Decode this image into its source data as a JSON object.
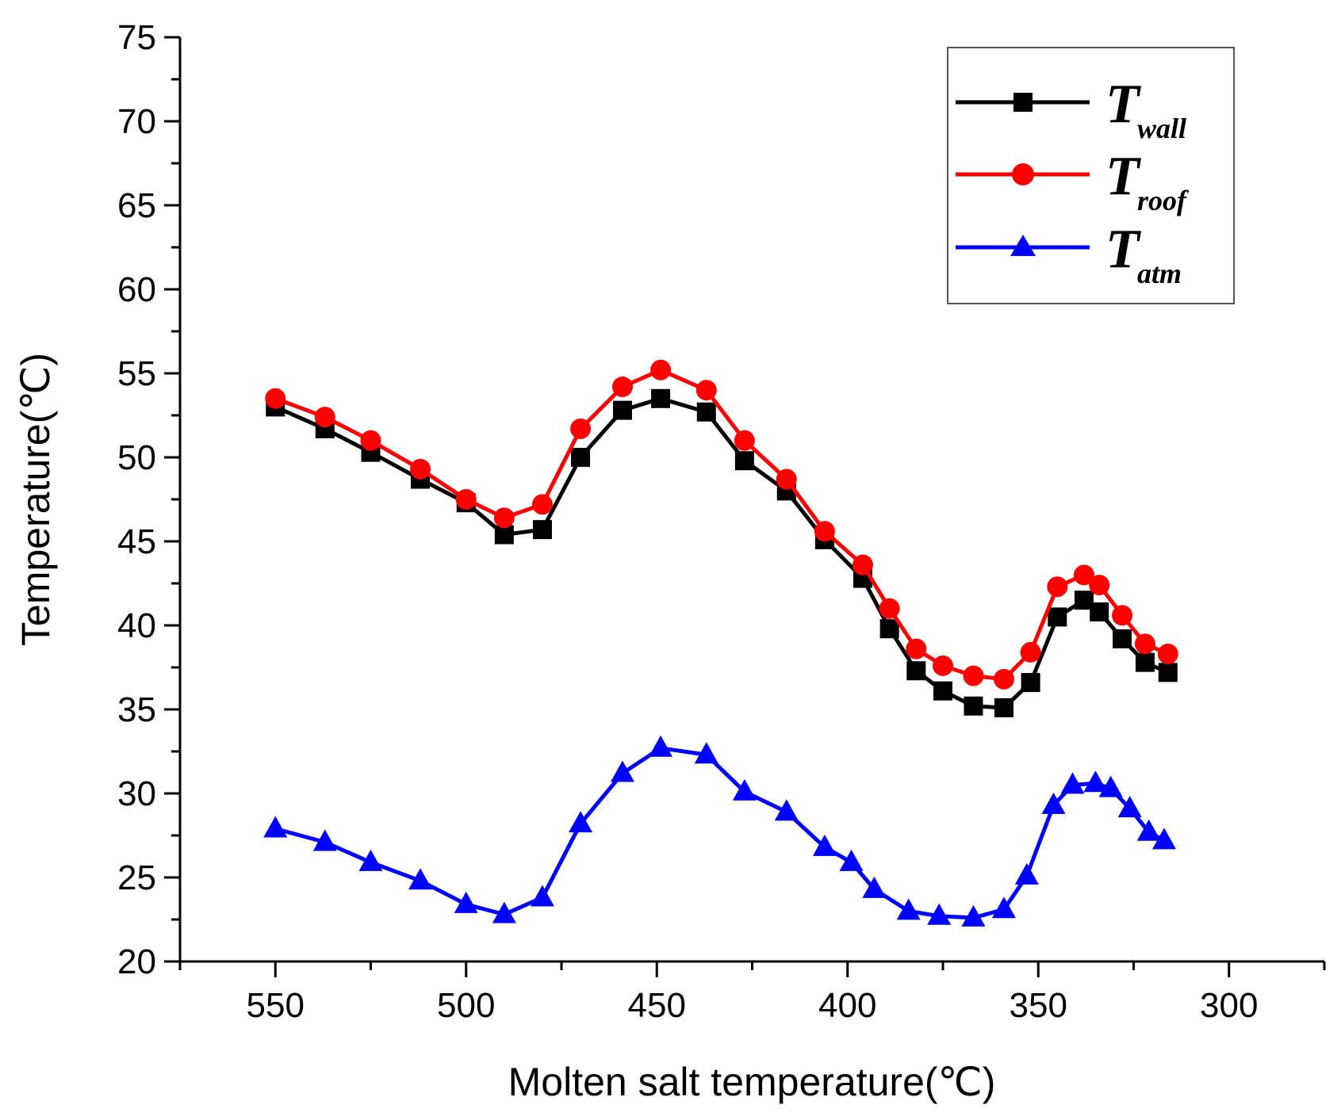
{
  "chart_data": {
    "type": "line",
    "title": "",
    "xlabel": "Molten salt temperature(℃)",
    "ylabel": "Temperature(℃)",
    "xlim": [
      575,
      275
    ],
    "ylim": [
      20,
      75
    ],
    "x_ticks": [
      550,
      500,
      450,
      400,
      350,
      300
    ],
    "y_ticks": [
      20,
      25,
      30,
      35,
      40,
      45,
      50,
      55,
      60,
      65,
      70,
      75
    ],
    "grid": false,
    "legend_position": "top-right",
    "series": [
      {
        "name": "T_wall",
        "main": "T",
        "sub": "wall",
        "color": "#000000",
        "marker": "square",
        "x": [
          550,
          537,
          525,
          512,
          500,
          490,
          480,
          470,
          459,
          449,
          437,
          427,
          416,
          406,
          396,
          389,
          382,
          375,
          367,
          359,
          352,
          345,
          338,
          334,
          328,
          322,
          316
        ],
        "y": [
          53.0,
          51.7,
          50.3,
          48.7,
          47.3,
          45.4,
          45.7,
          50.0,
          52.8,
          53.5,
          52.7,
          49.8,
          48.0,
          45.1,
          42.8,
          39.8,
          37.3,
          36.1,
          35.2,
          35.1,
          36.6,
          40.5,
          41.5,
          40.8,
          39.2,
          37.8,
          37.2
        ]
      },
      {
        "name": "T_roof",
        "main": "T",
        "sub": "roof",
        "color": "#ff0000",
        "marker": "circle",
        "x": [
          550,
          537,
          525,
          512,
          500,
          490,
          480,
          470,
          459,
          449,
          437,
          427,
          416,
          406,
          396,
          389,
          382,
          375,
          367,
          359,
          352,
          345,
          338,
          334,
          328,
          322,
          316
        ],
        "y": [
          53.5,
          52.4,
          51.0,
          49.3,
          47.5,
          46.4,
          47.2,
          51.7,
          54.2,
          55.2,
          54.0,
          51.0,
          48.7,
          45.6,
          43.6,
          41.0,
          38.6,
          37.6,
          37.0,
          36.8,
          38.4,
          42.3,
          43.0,
          42.4,
          40.6,
          38.9,
          38.3
        ]
      },
      {
        "name": "T_atm",
        "main": "T",
        "sub": "atm",
        "color": "#0000ff",
        "marker": "triangle",
        "x": [
          550,
          537,
          525,
          512,
          500,
          490,
          480,
          470,
          459,
          449,
          437,
          427,
          416,
          406,
          399,
          393,
          384,
          376,
          367,
          359,
          353,
          346,
          341,
          335,
          331,
          326,
          321,
          317
        ],
        "y": [
          27.9,
          27.1,
          25.9,
          24.8,
          23.4,
          22.8,
          23.8,
          28.2,
          31.2,
          32.7,
          32.3,
          30.1,
          28.9,
          26.8,
          25.9,
          24.3,
          23.0,
          22.7,
          22.6,
          23.1,
          25.1,
          29.3,
          30.5,
          30.6,
          30.3,
          29.1,
          27.7,
          27.2
        ]
      }
    ]
  }
}
